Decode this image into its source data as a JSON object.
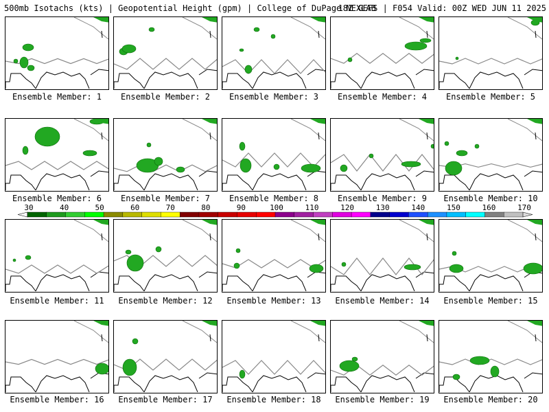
{
  "header": {
    "left": "500mb Isotachs (kts) | Geopotential Height (gpm) | College of DuPage NEXLAB",
    "right": "18Z GEFS | F054 Valid: 00Z WED JUN 11 2025"
  },
  "panels": [
    {
      "caption": "Ensemble Member: 1",
      "member": 1
    },
    {
      "caption": "Ensemble Member: 2",
      "member": 2
    },
    {
      "caption": "Ensemble Member: 3",
      "member": 3
    },
    {
      "caption": "Ensemble Member: 4",
      "member": 4
    },
    {
      "caption": "Ensemble Member: 5",
      "member": 5
    },
    {
      "caption": "Ensemble Member: 6",
      "member": 6
    },
    {
      "caption": "Ensemble Member: 7",
      "member": 7
    },
    {
      "caption": "Ensemble Member: 8",
      "member": 8
    },
    {
      "caption": "Ensemble Member: 9",
      "member": 9
    },
    {
      "caption": "Ensemble Member: 10",
      "member": 10
    },
    {
      "caption": "Ensemble Member: 11",
      "member": 11
    },
    {
      "caption": "Ensemble Member: 12",
      "member": 12
    },
    {
      "caption": "Ensemble Member: 13",
      "member": 13
    },
    {
      "caption": "Ensemble Member: 14",
      "member": 14
    },
    {
      "caption": "Ensemble Member: 15",
      "member": 15
    },
    {
      "caption": "Ensemble Member: 16",
      "member": 16
    },
    {
      "caption": "Ensemble Member: 17",
      "member": 17
    },
    {
      "caption": "Ensemble Member: 18",
      "member": 18
    },
    {
      "caption": "Ensemble Member: 19",
      "member": 19
    },
    {
      "caption": "Ensemble Member: 20",
      "member": 20
    }
  ],
  "colorbar": {
    "labels": [
      "30",
      "40",
      "50",
      "60",
      "70",
      "80",
      "90",
      "100",
      "110",
      "120",
      "130",
      "140",
      "150",
      "160",
      "170"
    ],
    "colors": [
      "#006400",
      "#1e9a1e",
      "#32cd32",
      "#00ff00",
      "#8b8b00",
      "#b8b800",
      "#dede00",
      "#ffff00",
      "#800000",
      "#a00000",
      "#c80000",
      "#e60000",
      "#ff0000",
      "#8b008b",
      "#a020a0",
      "#c040c0",
      "#e000e0",
      "#ff00ff",
      "#00008b",
      "#0000cd",
      "#1e50ff",
      "#1e90ff",
      "#00bfff",
      "#00ffff",
      "#808080",
      "#c0c0c0"
    ]
  },
  "legend_colors": {
    "coast": "#000000",
    "height_contour": "#888888",
    "isotach_fill": "#22a822",
    "isotach_edge": "#0a6a0a"
  }
}
